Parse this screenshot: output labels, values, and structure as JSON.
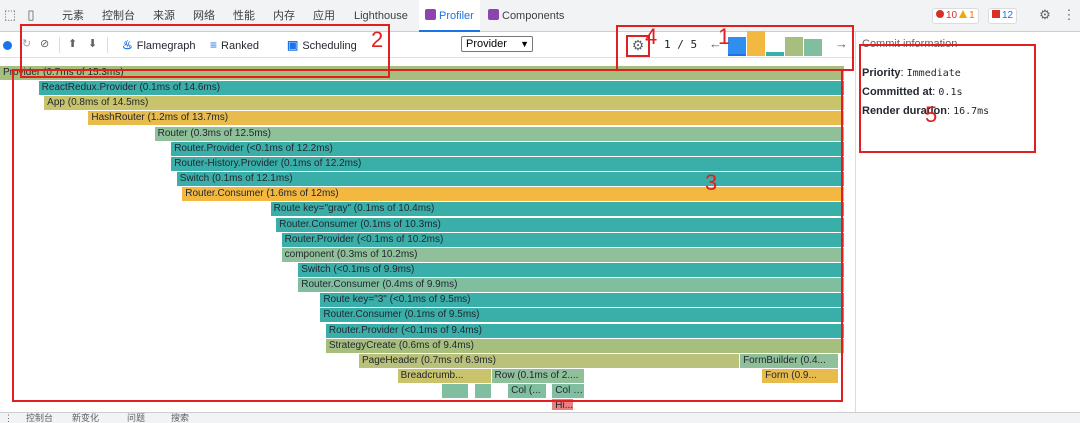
{
  "devtools": {
    "tabs": [
      "元素",
      "控制台",
      "来源",
      "网络",
      "性能",
      "内存",
      "应用",
      "Lighthouse",
      "Profiler",
      "Components"
    ],
    "active_tab": "Profiler",
    "errors": "10",
    "warnings": "1",
    "issues": "12"
  },
  "toolbar": {
    "flamegraph_label": "Flamegraph",
    "ranked_label": "Ranked",
    "scheduling_label": "Scheduling",
    "root_select_value": "Provider",
    "commit_index": "1 / 5"
  },
  "commit_bars": [
    {
      "color": "#2f8ff0",
      "level": 0.45,
      "selected": true
    },
    {
      "color": "#f3b840",
      "level": 0.6
    },
    {
      "color": "#3aafa9",
      "level": 0.1
    },
    {
      "color": "#a6bf7f",
      "level": 0.45
    },
    {
      "color": "#7fbfa0",
      "level": 0.42
    }
  ],
  "commit_info": {
    "title": "Commit information",
    "priority_label": "Priority",
    "priority_value": "Immediate",
    "committed_label": "Committed at",
    "committed_value": "0.1s",
    "duration_label": "Render duration",
    "duration_value": "16.7ms"
  },
  "flamegraph": [
    {
      "label": "Provider (0.7ms of 15.3ms)",
      "color": "#a6bf7f",
      "start": 0,
      "end": 15.3,
      "row": 0
    },
    {
      "label": "ReactRedux.Provider (0.1ms of 14.6ms)",
      "color": "#3aafa9",
      "start": 0.7,
      "end": 15.3,
      "row": 1
    },
    {
      "label": "App (0.8ms of 14.5ms)",
      "color": "#c9c46b",
      "start": 0.8,
      "end": 15.3,
      "row": 2
    },
    {
      "label": "HashRouter (1.2ms of 13.7ms)",
      "color": "#e8bb4d",
      "start": 1.6,
      "end": 15.3,
      "row": 3
    },
    {
      "label": "Router (0.3ms of 12.5ms)",
      "color": "#8fc09a",
      "start": 2.8,
      "end": 15.3,
      "row": 4
    },
    {
      "label": "Router.Provider (<0.1ms of 12.2ms)",
      "color": "#3aafa9",
      "start": 3.1,
      "end": 15.3,
      "row": 5
    },
    {
      "label": "Router-History.Provider (0.1ms of 12.2ms)",
      "color": "#3aafa9",
      "start": 3.1,
      "end": 15.3,
      "row": 6
    },
    {
      "label": "Switch (0.1ms of 12.1ms)",
      "color": "#3aafa9",
      "start": 3.2,
      "end": 15.3,
      "row": 7
    },
    {
      "label": "Router.Consumer (1.6ms of 12ms)",
      "color": "#f3b840",
      "start": 3.3,
      "end": 15.3,
      "row": 8
    },
    {
      "label": "Route key=\"gray\" (0.1ms of 10.4ms)",
      "color": "#3aafa9",
      "start": 4.9,
      "end": 15.3,
      "row": 9
    },
    {
      "label": "Router.Consumer (0.1ms of 10.3ms)",
      "color": "#3aafa9",
      "start": 5.0,
      "end": 15.3,
      "row": 10
    },
    {
      "label": "Router.Provider (<0.1ms of 10.2ms)",
      "color": "#3aafa9",
      "start": 5.1,
      "end": 15.3,
      "row": 11
    },
    {
      "label": "component (0.3ms of 10.2ms)",
      "color": "#8fc09a",
      "start": 5.1,
      "end": 15.3,
      "row": 12
    },
    {
      "label": "Switch (<0.1ms of 9.9ms)",
      "color": "#3aafa9",
      "start": 5.4,
      "end": 15.3,
      "row": 13
    },
    {
      "label": "Router.Consumer (0.4ms of 9.9ms)",
      "color": "#7fbfa0",
      "start": 5.4,
      "end": 15.3,
      "row": 14
    },
    {
      "label": "Route key=\"3\" (<0.1ms of 9.5ms)",
      "color": "#3aafa9",
      "start": 5.8,
      "end": 15.3,
      "row": 15
    },
    {
      "label": "Router.Consumer (0.1ms of 9.5ms)",
      "color": "#3aafa9",
      "start": 5.8,
      "end": 15.3,
      "row": 16
    },
    {
      "label": "Router.Provider (<0.1ms of 9.4ms)",
      "color": "#3aafa9",
      "start": 5.9,
      "end": 15.3,
      "row": 17
    },
    {
      "label": "StrategyCreate (0.6ms of 9.4ms)",
      "color": "#a6bf7f",
      "start": 5.9,
      "end": 15.3,
      "row": 18
    },
    {
      "label": "PageHeader (0.7ms of 6.9ms)",
      "color": "#b9c17a",
      "start": 6.5,
      "end": 13.4,
      "row": 19
    },
    {
      "label": "FormBuilder (0.4...",
      "color": "#8fc09a",
      "start": 13.4,
      "end": 15.2,
      "row": 19
    },
    {
      "label": "Breadcrumb...",
      "color": "#c9c46b",
      "start": 7.2,
      "end": 8.9,
      "row": 20
    },
    {
      "label": "Row (0.1ms of 2....",
      "color": "#8fc09a",
      "start": 8.9,
      "end": 10.6,
      "row": 20
    },
    {
      "label": "Form (0.9...",
      "color": "#e8bb4d",
      "start": 13.8,
      "end": 15.2,
      "row": 20
    },
    {
      "label": "",
      "color": "#7fbfa0",
      "start": 8.0,
      "end": 8.5,
      "row": 21
    },
    {
      "label": "",
      "color": "#7fbfa0",
      "start": 8.6,
      "end": 8.9,
      "row": 21
    },
    {
      "label": "Col (...",
      "color": "#7fbfa0",
      "start": 9.2,
      "end": 9.9,
      "row": 21
    },
    {
      "label": "Col (<...",
      "color": "#7fbfa0",
      "start": 10.0,
      "end": 10.6,
      "row": 21
    },
    {
      "label": "Hi...",
      "color": "#e88080",
      "start": 10.0,
      "end": 10.4,
      "row": 22
    }
  ],
  "drawer_tabs": [
    "控制台",
    "新变化",
    "问题",
    "搜索"
  ],
  "annotations": [
    "1",
    "2",
    "3",
    "4",
    "5"
  ]
}
